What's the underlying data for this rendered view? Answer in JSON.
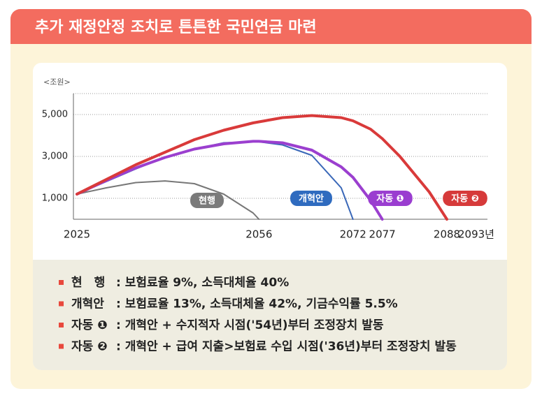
{
  "chart_data": {
    "type": "line",
    "title": "추가 재정안정 조치로 튼튼한 국민연금 마련",
    "y_label": "<조원>",
    "x": [
      2025,
      2030,
      2035,
      2040,
      2045,
      2050,
      2055,
      2056,
      2060,
      2065,
      2070,
      2072,
      2075,
      2077,
      2080,
      2085,
      2088
    ],
    "xlim": [
      2025,
      2093
    ],
    "xticks": [
      2025,
      2056,
      2072,
      2077,
      2088,
      {
        "value": 2093,
        "label": "2093년"
      }
    ],
    "ylim": [
      0,
      6000
    ],
    "yticks": [
      {
        "value": 1000,
        "label": "1,000"
      },
      {
        "value": 3000,
        "label": "3,000"
      },
      {
        "value": 5000,
        "label": "5,000"
      }
    ],
    "grid": true,
    "series": [
      {
        "name": "현행",
        "color": "#777777",
        "values": [
          1200,
          1500,
          1750,
          1830,
          1700,
          1200,
          300,
          0,
          null,
          null,
          null,
          null,
          null,
          null,
          null,
          null,
          null
        ]
      },
      {
        "name": "개혁안",
        "color": "#3a68b8",
        "values": [
          1200,
          1800,
          2400,
          2950,
          3350,
          3650,
          3700,
          3700,
          3550,
          3050,
          1500,
          0,
          null,
          null,
          null,
          null,
          null
        ]
      },
      {
        "name": "자동 ❶",
        "color": "#9b3fcf",
        "values": [
          1200,
          1850,
          2450,
          2950,
          3350,
          3600,
          3720,
          3720,
          3650,
          3300,
          2500,
          2000,
          900,
          0,
          null,
          null,
          null
        ]
      },
      {
        "name": "자동 ❷",
        "color": "#d93a3a",
        "values": [
          1200,
          1900,
          2600,
          3200,
          3800,
          4250,
          4600,
          4650,
          4850,
          4950,
          4850,
          4700,
          4300,
          3850,
          3000,
          1300,
          0
        ]
      }
    ],
    "notes": [
      {
        "label": "현　행",
        "text": ": 보험료율 9%, 소득대체율 40%"
      },
      {
        "label": "개혁안",
        "text": ": 보험료율 13%, 소득대체율 42%, 기금수익률 5.5%"
      },
      {
        "label": "자동 ❶",
        "text": ": 개혁안 + 수지적자 시점('54년)부터 조정장치 발동"
      },
      {
        "label": "자동 ❷",
        "text": ": 개혁안 + 급여 지출>보험료 수입 시점('36년)부터 조정장치 발동"
      }
    ]
  }
}
